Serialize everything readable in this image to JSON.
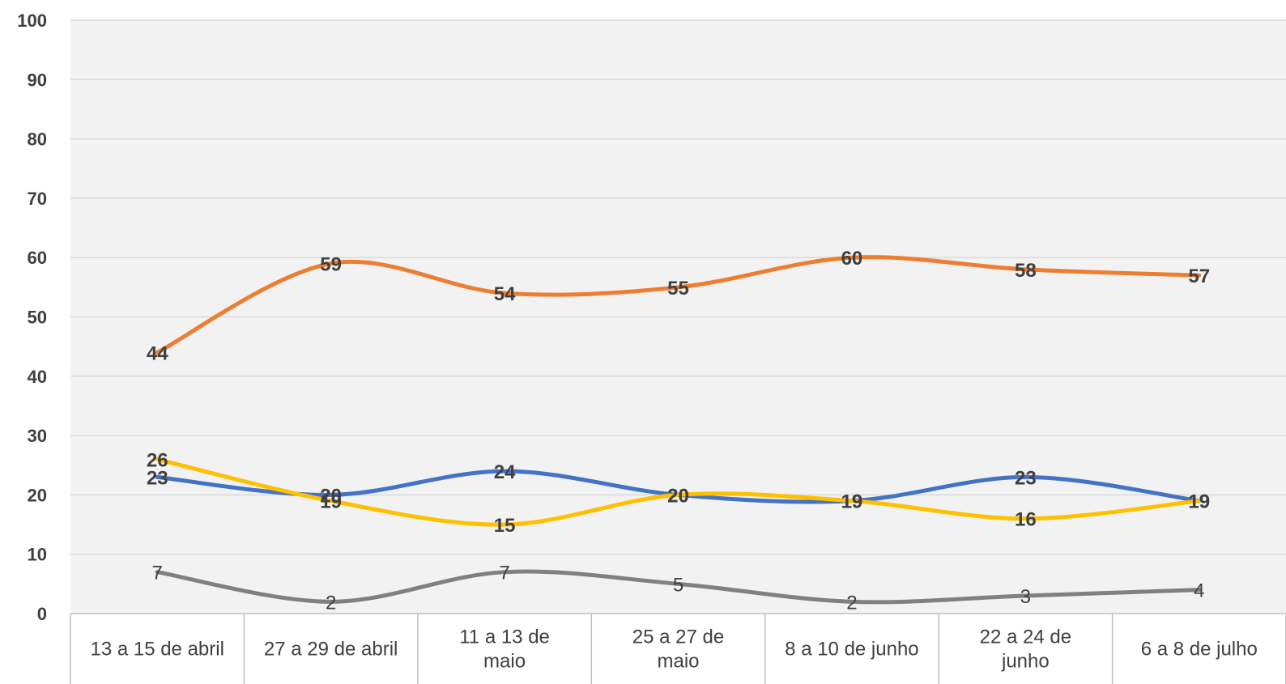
{
  "chart_data": {
    "type": "line",
    "categories": [
      [
        "13 a 15 de abril"
      ],
      [
        "27 a 29 de abril"
      ],
      [
        "11 a 13 de",
        "maio"
      ],
      [
        "25 a 27 de",
        "maio"
      ],
      [
        "8 a 10 de junho"
      ],
      [
        "22 a 24 de",
        "junho"
      ],
      [
        "6 a 8 de julho"
      ]
    ],
    "ylim": [
      0,
      100
    ],
    "yticks": [
      "0",
      "10",
      "20",
      "30",
      "40",
      "50",
      "60",
      "70",
      "80",
      "90",
      "100"
    ],
    "grid": true,
    "series": [
      {
        "color": "#ED7D31",
        "bold_labels": true,
        "values": [
          44,
          59,
          54,
          55,
          60,
          58,
          57
        ]
      },
      {
        "color": "#4472C4",
        "bold_labels": true,
        "values": [
          23,
          20,
          24,
          20,
          19,
          23,
          19
        ]
      },
      {
        "color": "#FFC000",
        "bold_labels": true,
        "values": [
          26,
          19,
          15,
          20,
          19,
          16,
          19
        ]
      },
      {
        "color": "#808080",
        "bold_labels": false,
        "values": [
          7,
          2,
          7,
          5,
          2,
          3,
          4
        ]
      }
    ]
  }
}
